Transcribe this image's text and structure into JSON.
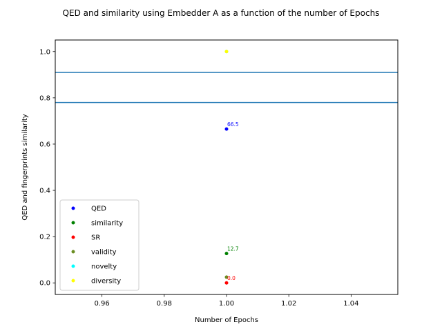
{
  "chart_data": {
    "type": "scatter",
    "title": "QED and similarity using Embedder A as a function of the number of Epochs",
    "xlabel": "Number of Epochs",
    "ylabel": "QED and fingerprints similarity",
    "xlim": [
      0.945,
      1.055
    ],
    "ylim": [
      -0.05,
      1.05
    ],
    "x_ticks": [
      0.96,
      0.98,
      1.0,
      1.02,
      1.04
    ],
    "x_tick_labels": [
      "0.96",
      "0.98",
      "1.00",
      "1.02",
      "1.04"
    ],
    "y_ticks": [
      0.0,
      0.2,
      0.4,
      0.6,
      0.8,
      1.0
    ],
    "y_tick_labels": [
      "0.0",
      "0.2",
      "0.4",
      "0.6",
      "0.8",
      "1.0"
    ],
    "grid": false,
    "legend_position": "lower-left",
    "series": [
      {
        "name": "QED",
        "color": "#0000ff",
        "x": [
          1.0
        ],
        "y": [
          0.665
        ]
      },
      {
        "name": "similarity",
        "color": "#008000",
        "x": [
          1.0
        ],
        "y": [
          0.127
        ]
      },
      {
        "name": "SR",
        "color": "#ff0000",
        "x": [
          1.0
        ],
        "y": [
          0.0
        ]
      },
      {
        "name": "validity",
        "color": "#6b8e23",
        "x": [
          1.0
        ],
        "y": [
          0.025
        ]
      },
      {
        "name": "novelty",
        "color": "#00ffff",
        "x": [
          1.0
        ],
        "y": [
          1.0
        ]
      },
      {
        "name": "diversity",
        "color": "#ffff00",
        "x": [
          1.0
        ],
        "y": [
          1.0
        ]
      }
    ],
    "hlines": [
      {
        "y": 0.91,
        "color": "#1f77b4"
      },
      {
        "y": 0.78,
        "color": "#1f77b4"
      }
    ],
    "annotations": [
      {
        "text": "66.5",
        "x": 1.0,
        "y": 0.665,
        "color": "#0000ff"
      },
      {
        "text": "12.7",
        "x": 1.0,
        "y": 0.127,
        "color": "#008000"
      },
      {
        "text": "0.0",
        "x": 1.0,
        "y": 0.0,
        "color": "#ff0000"
      }
    ]
  }
}
